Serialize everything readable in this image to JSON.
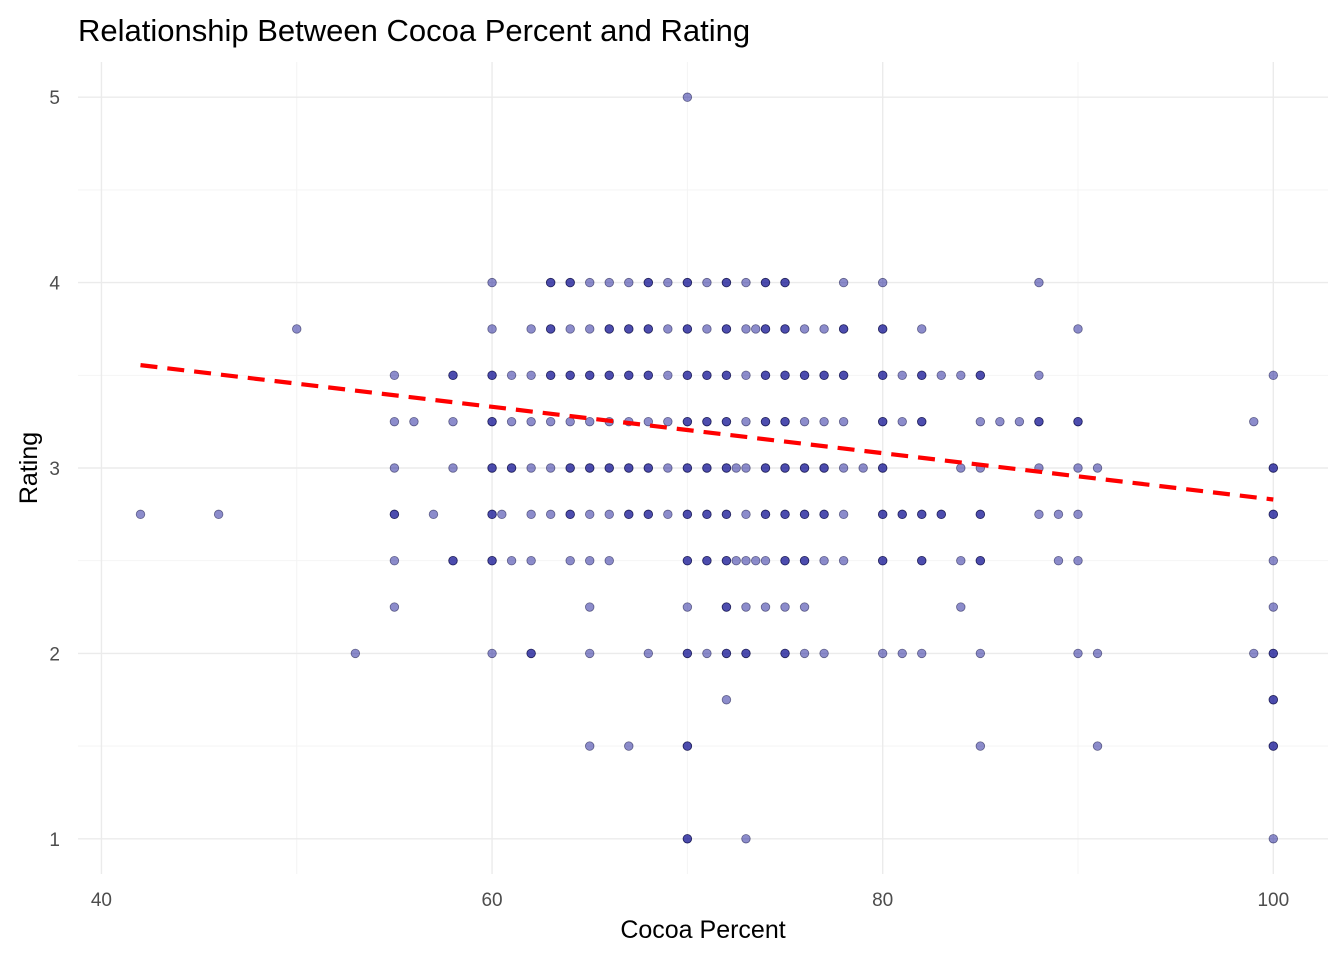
{
  "chart_data": {
    "type": "scatter",
    "title": "Relationship Between Cocoa Percent and Rating",
    "xlabel": "Cocoa Percent",
    "ylabel": "Rating",
    "xlim": [
      38.8,
      102.8
    ],
    "ylim": [
      0.81,
      5.19
    ],
    "x_ticks": [
      40,
      60,
      80,
      100
    ],
    "y_ticks": [
      1,
      2,
      3,
      4,
      5
    ],
    "x_tick_labels": [
      "40",
      "60",
      "80",
      "100"
    ],
    "y_tick_labels": [
      "1",
      "2",
      "3",
      "4",
      "5"
    ],
    "grid": true,
    "legend": "none",
    "point_color": "#00008B",
    "point_opacity": 0.45,
    "trend_color": "#FF0000",
    "trend_style": "dashed",
    "trend_line": {
      "x": [
        42,
        100
      ],
      "y": [
        3.555,
        2.83
      ]
    },
    "points": [
      [
        42,
        2.75
      ],
      [
        46,
        2.75
      ],
      [
        50,
        3.75
      ],
      [
        53,
        2.0
      ],
      [
        55,
        3.5
      ],
      [
        55,
        3.25
      ],
      [
        55,
        3.0
      ],
      [
        55,
        2.75
      ],
      [
        55,
        2.75
      ],
      [
        55,
        2.5
      ],
      [
        55,
        2.25
      ],
      [
        56,
        3.25
      ],
      [
        57,
        2.75
      ],
      [
        58,
        3.5
      ],
      [
        58,
        3.5
      ],
      [
        58,
        3.25
      ],
      [
        58,
        3.0
      ],
      [
        58,
        2.5
      ],
      [
        58,
        2.5
      ],
      [
        60,
        4.0
      ],
      [
        60,
        3.75
      ],
      [
        60,
        3.5
      ],
      [
        60,
        3.5
      ],
      [
        60,
        3.25
      ],
      [
        60,
        3.25
      ],
      [
        60,
        3.0
      ],
      [
        60,
        3.0
      ],
      [
        60,
        2.75
      ],
      [
        60,
        2.75
      ],
      [
        60,
        2.5
      ],
      [
        60,
        2.5
      ],
      [
        60,
        2.0
      ],
      [
        60.5,
        2.75
      ],
      [
        61,
        3.5
      ],
      [
        61,
        3.25
      ],
      [
        61,
        3.0
      ],
      [
        61,
        3.0
      ],
      [
        61,
        2.5
      ],
      [
        62,
        3.75
      ],
      [
        62,
        3.5
      ],
      [
        62,
        3.25
      ],
      [
        62,
        3.0
      ],
      [
        62,
        2.75
      ],
      [
        62,
        2.5
      ],
      [
        62,
        2.0
      ],
      [
        62,
        2.0
      ],
      [
        63,
        4.0
      ],
      [
        63,
        4.0
      ],
      [
        63,
        3.75
      ],
      [
        63,
        3.75
      ],
      [
        63,
        3.5
      ],
      [
        63,
        3.5
      ],
      [
        63,
        3.25
      ],
      [
        63,
        3.0
      ],
      [
        63,
        2.75
      ],
      [
        64,
        4.0
      ],
      [
        64,
        4.0
      ],
      [
        64,
        3.75
      ],
      [
        64,
        3.5
      ],
      [
        64,
        3.5
      ],
      [
        64,
        3.25
      ],
      [
        64,
        3.0
      ],
      [
        64,
        3.0
      ],
      [
        64,
        2.75
      ],
      [
        64,
        2.75
      ],
      [
        64,
        2.5
      ],
      [
        65,
        4.0
      ],
      [
        65,
        3.75
      ],
      [
        65,
        3.5
      ],
      [
        65,
        3.5
      ],
      [
        65,
        3.25
      ],
      [
        65,
        3.0
      ],
      [
        65,
        3.0
      ],
      [
        65,
        2.75
      ],
      [
        65,
        2.5
      ],
      [
        65,
        2.25
      ],
      [
        65,
        2.0
      ],
      [
        65,
        1.5
      ],
      [
        66,
        4.0
      ],
      [
        66,
        3.75
      ],
      [
        66,
        3.75
      ],
      [
        66,
        3.5
      ],
      [
        66,
        3.5
      ],
      [
        66,
        3.25
      ],
      [
        66,
        3.0
      ],
      [
        66,
        3.0
      ],
      [
        66,
        2.75
      ],
      [
        66,
        2.5
      ],
      [
        67,
        4.0
      ],
      [
        67,
        3.75
      ],
      [
        67,
        3.75
      ],
      [
        67,
        3.5
      ],
      [
        67,
        3.5
      ],
      [
        67,
        3.25
      ],
      [
        67,
        3.0
      ],
      [
        67,
        3.0
      ],
      [
        67,
        2.75
      ],
      [
        67,
        2.75
      ],
      [
        67,
        1.5
      ],
      [
        68,
        4.0
      ],
      [
        68,
        4.0
      ],
      [
        68,
        3.75
      ],
      [
        68,
        3.75
      ],
      [
        68,
        3.5
      ],
      [
        68,
        3.5
      ],
      [
        68,
        3.25
      ],
      [
        68,
        3.0
      ],
      [
        68,
        3.0
      ],
      [
        68,
        2.75
      ],
      [
        68,
        2.75
      ],
      [
        68,
        2.0
      ],
      [
        69,
        4.0
      ],
      [
        69,
        3.75
      ],
      [
        69,
        3.5
      ],
      [
        69,
        3.25
      ],
      [
        69,
        3.0
      ],
      [
        69,
        2.75
      ],
      [
        70,
        5.0
      ],
      [
        70,
        4.0
      ],
      [
        70,
        4.0
      ],
      [
        70,
        3.75
      ],
      [
        70,
        3.75
      ],
      [
        70,
        3.5
      ],
      [
        70,
        3.5
      ],
      [
        70,
        3.25
      ],
      [
        70,
        3.25
      ],
      [
        70,
        3.0
      ],
      [
        70,
        3.0
      ],
      [
        70,
        2.75
      ],
      [
        70,
        2.75
      ],
      [
        70,
        2.5
      ],
      [
        70,
        2.5
      ],
      [
        70,
        2.25
      ],
      [
        70,
        2.0
      ],
      [
        70,
        2.0
      ],
      [
        70,
        1.5
      ],
      [
        70,
        1.5
      ],
      [
        70,
        1.0
      ],
      [
        70,
        1.0
      ],
      [
        71,
        4.0
      ],
      [
        71,
        3.75
      ],
      [
        71,
        3.5
      ],
      [
        71,
        3.5
      ],
      [
        71,
        3.25
      ],
      [
        71,
        3.25
      ],
      [
        71,
        3.0
      ],
      [
        71,
        3.0
      ],
      [
        71,
        2.75
      ],
      [
        71,
        2.75
      ],
      [
        71,
        2.5
      ],
      [
        71,
        2.5
      ],
      [
        71,
        2.0
      ],
      [
        72,
        4.0
      ],
      [
        72,
        4.0
      ],
      [
        72,
        3.75
      ],
      [
        72,
        3.75
      ],
      [
        72,
        3.5
      ],
      [
        72,
        3.5
      ],
      [
        72,
        3.25
      ],
      [
        72,
        3.25
      ],
      [
        72,
        3.0
      ],
      [
        72,
        3.0
      ],
      [
        72,
        2.75
      ],
      [
        72,
        2.75
      ],
      [
        72,
        2.5
      ],
      [
        72,
        2.5
      ],
      [
        72,
        2.25
      ],
      [
        72,
        2.25
      ],
      [
        72,
        2.0
      ],
      [
        72,
        2.0
      ],
      [
        72,
        1.75
      ],
      [
        72.5,
        2.5
      ],
      [
        72.5,
        3.0
      ],
      [
        73,
        4.0
      ],
      [
        73,
        3.75
      ],
      [
        73,
        3.5
      ],
      [
        73,
        3.25
      ],
      [
        73,
        3.0
      ],
      [
        73,
        2.75
      ],
      [
        73,
        2.5
      ],
      [
        73,
        2.25
      ],
      [
        73,
        2.0
      ],
      [
        73,
        2.0
      ],
      [
        73,
        1.0
      ],
      [
        73.5,
        3.75
      ],
      [
        73.5,
        2.5
      ],
      [
        74,
        4.0
      ],
      [
        74,
        4.0
      ],
      [
        74,
        3.75
      ],
      [
        74,
        3.75
      ],
      [
        74,
        3.5
      ],
      [
        74,
        3.5
      ],
      [
        74,
        3.25
      ],
      [
        74,
        3.25
      ],
      [
        74,
        3.0
      ],
      [
        74,
        3.0
      ],
      [
        74,
        2.75
      ],
      [
        74,
        2.75
      ],
      [
        74,
        2.5
      ],
      [
        74,
        2.25
      ],
      [
        75,
        4.0
      ],
      [
        75,
        4.0
      ],
      [
        75,
        3.75
      ],
      [
        75,
        3.75
      ],
      [
        75,
        3.5
      ],
      [
        75,
        3.5
      ],
      [
        75,
        3.25
      ],
      [
        75,
        3.25
      ],
      [
        75,
        3.0
      ],
      [
        75,
        3.0
      ],
      [
        75,
        2.75
      ],
      [
        75,
        2.75
      ],
      [
        75,
        2.5
      ],
      [
        75,
        2.5
      ],
      [
        75,
        2.25
      ],
      [
        75,
        2.0
      ],
      [
        75,
        2.0
      ],
      [
        76,
        3.75
      ],
      [
        76,
        3.5
      ],
      [
        76,
        3.5
      ],
      [
        76,
        3.25
      ],
      [
        76,
        3.0
      ],
      [
        76,
        3.0
      ],
      [
        76,
        2.75
      ],
      [
        76,
        2.75
      ],
      [
        76,
        2.5
      ],
      [
        76,
        2.5
      ],
      [
        76,
        2.25
      ],
      [
        76,
        2.0
      ],
      [
        77,
        3.75
      ],
      [
        77,
        3.5
      ],
      [
        77,
        3.5
      ],
      [
        77,
        3.25
      ],
      [
        77,
        3.0
      ],
      [
        77,
        3.0
      ],
      [
        77,
        2.75
      ],
      [
        77,
        2.75
      ],
      [
        77,
        2.5
      ],
      [
        77,
        2.0
      ],
      [
        78,
        4.0
      ],
      [
        78,
        3.75
      ],
      [
        78,
        3.75
      ],
      [
        78,
        3.5
      ],
      [
        78,
        3.5
      ],
      [
        78,
        3.25
      ],
      [
        78,
        3.0
      ],
      [
        78,
        2.75
      ],
      [
        78,
        2.5
      ],
      [
        79,
        3.0
      ],
      [
        80,
        4.0
      ],
      [
        80,
        3.75
      ],
      [
        80,
        3.75
      ],
      [
        80,
        3.5
      ],
      [
        80,
        3.5
      ],
      [
        80,
        3.25
      ],
      [
        80,
        3.25
      ],
      [
        80,
        3.0
      ],
      [
        80,
        3.0
      ],
      [
        80,
        2.75
      ],
      [
        80,
        2.75
      ],
      [
        80,
        2.5
      ],
      [
        80,
        2.5
      ],
      [
        80,
        2.0
      ],
      [
        81,
        3.5
      ],
      [
        81,
        3.25
      ],
      [
        81,
        2.75
      ],
      [
        81,
        2.75
      ],
      [
        81,
        2.0
      ],
      [
        82,
        3.75
      ],
      [
        82,
        3.5
      ],
      [
        82,
        3.5
      ],
      [
        82,
        3.25
      ],
      [
        82,
        3.25
      ],
      [
        82,
        2.75
      ],
      [
        82,
        2.75
      ],
      [
        82,
        2.5
      ],
      [
        82,
        2.5
      ],
      [
        82,
        2.0
      ],
      [
        83,
        3.5
      ],
      [
        83,
        2.75
      ],
      [
        83,
        2.75
      ],
      [
        84,
        3.5
      ],
      [
        84,
        3.0
      ],
      [
        84,
        2.5
      ],
      [
        84,
        2.25
      ],
      [
        85,
        3.5
      ],
      [
        85,
        3.5
      ],
      [
        85,
        3.25
      ],
      [
        85,
        3.0
      ],
      [
        85,
        2.75
      ],
      [
        85,
        2.75
      ],
      [
        85,
        2.5
      ],
      [
        85,
        2.5
      ],
      [
        85,
        2.0
      ],
      [
        85,
        1.5
      ],
      [
        86,
        3.25
      ],
      [
        87,
        3.25
      ],
      [
        88,
        4.0
      ],
      [
        88,
        3.5
      ],
      [
        88,
        3.25
      ],
      [
        88,
        3.25
      ],
      [
        88,
        3.0
      ],
      [
        88,
        2.75
      ],
      [
        89,
        2.75
      ],
      [
        89,
        2.5
      ],
      [
        90,
        3.75
      ],
      [
        90,
        3.25
      ],
      [
        90,
        3.25
      ],
      [
        90,
        3.0
      ],
      [
        90,
        2.75
      ],
      [
        90,
        2.5
      ],
      [
        90,
        2.0
      ],
      [
        91,
        3.0
      ],
      [
        91,
        2.0
      ],
      [
        91,
        1.5
      ],
      [
        99,
        3.25
      ],
      [
        99,
        2.0
      ],
      [
        100,
        3.5
      ],
      [
        100,
        3.0
      ],
      [
        100,
        3.0
      ],
      [
        100,
        2.75
      ],
      [
        100,
        2.75
      ],
      [
        100,
        2.5
      ],
      [
        100,
        2.25
      ],
      [
        100,
        2.0
      ],
      [
        100,
        2.0
      ],
      [
        100,
        1.75
      ],
      [
        100,
        1.75
      ],
      [
        100,
        1.5
      ],
      [
        100,
        1.5
      ],
      [
        100,
        1.0
      ]
    ]
  }
}
